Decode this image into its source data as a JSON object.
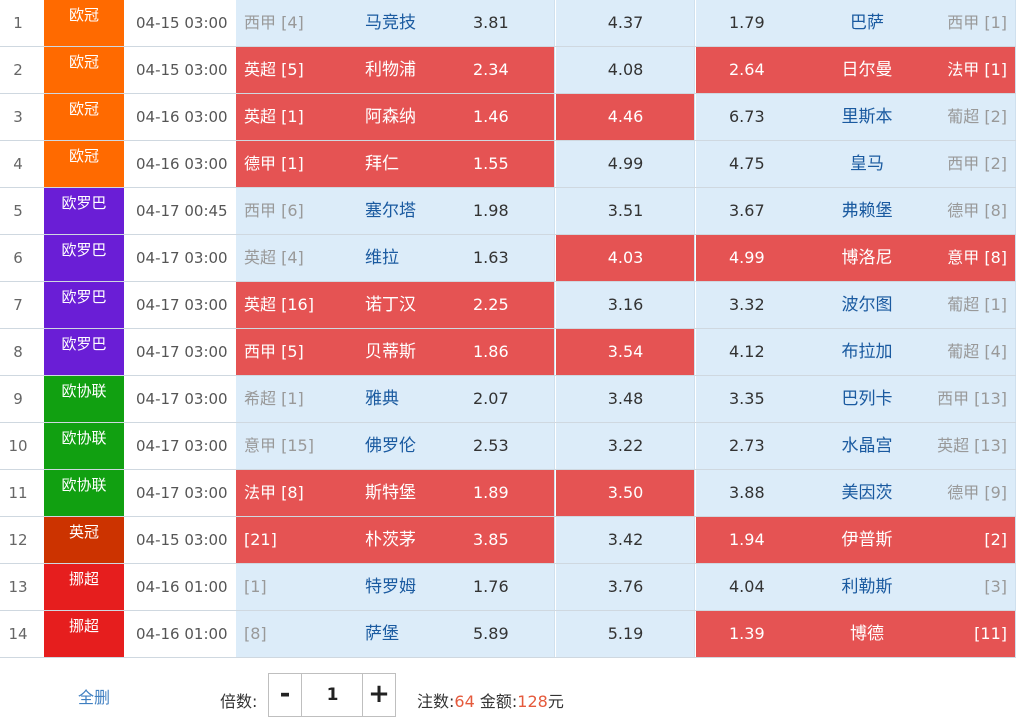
{
  "matches": [
    {
      "no": "1",
      "league": "欧冠",
      "league_color": "#ff6a00",
      "time": "04-15 03:00",
      "home_rank": "西甲 [4]",
      "home": "马竞技",
      "home_odds": "3.81",
      "draw_odds": "4.37",
      "away_odds": "1.79",
      "away": "巴萨",
      "away_rank": "西甲 [1]",
      "selected": []
    },
    {
      "no": "2",
      "league": "欧冠",
      "league_color": "#ff6a00",
      "time": "04-15 03:00",
      "home_rank": "英超 [5]",
      "home": "利物浦",
      "home_odds": "2.34",
      "draw_odds": "4.08",
      "away_odds": "2.64",
      "away": "日尔曼",
      "away_rank": "法甲 [1]",
      "selected": [
        "home",
        "away"
      ]
    },
    {
      "no": "3",
      "league": "欧冠",
      "league_color": "#ff6a00",
      "time": "04-16 03:00",
      "home_rank": "英超 [1]",
      "home": "阿森纳",
      "home_odds": "1.46",
      "draw_odds": "4.46",
      "away_odds": "6.73",
      "away": "里斯本",
      "away_rank": "葡超 [2]",
      "selected": [
        "home",
        "draw"
      ]
    },
    {
      "no": "4",
      "league": "欧冠",
      "league_color": "#ff6a00",
      "time": "04-16 03:00",
      "home_rank": "德甲 [1]",
      "home": "拜仁",
      "home_odds": "1.55",
      "draw_odds": "4.99",
      "away_odds": "4.75",
      "away": "皇马",
      "away_rank": "西甲 [2]",
      "selected": [
        "home"
      ]
    },
    {
      "no": "5",
      "league": "欧罗巴",
      "league_color": "#6a1ed6",
      "time": "04-17 00:45",
      "home_rank": "西甲 [6]",
      "home": "塞尔塔",
      "home_odds": "1.98",
      "draw_odds": "3.51",
      "away_odds": "3.67",
      "away": "弗赖堡",
      "away_rank": "德甲 [8]",
      "selected": []
    },
    {
      "no": "6",
      "league": "欧罗巴",
      "league_color": "#6a1ed6",
      "time": "04-17 03:00",
      "home_rank": "英超 [4]",
      "home": "维拉",
      "home_odds": "1.63",
      "draw_odds": "4.03",
      "away_odds": "4.99",
      "away": "博洛尼",
      "away_rank": "意甲 [8]",
      "selected": [
        "draw",
        "away"
      ]
    },
    {
      "no": "7",
      "league": "欧罗巴",
      "league_color": "#6a1ed6",
      "time": "04-17 03:00",
      "home_rank": "英超 [16]",
      "home": "诺丁汉",
      "home_odds": "2.25",
      "draw_odds": "3.16",
      "away_odds": "3.32",
      "away": "波尔图",
      "away_rank": "葡超 [1]",
      "selected": [
        "home"
      ]
    },
    {
      "no": "8",
      "league": "欧罗巴",
      "league_color": "#6a1ed6",
      "time": "04-17 03:00",
      "home_rank": "西甲 [5]",
      "home": "贝蒂斯",
      "home_odds": "1.86",
      "draw_odds": "3.54",
      "away_odds": "4.12",
      "away": "布拉加",
      "away_rank": "葡超 [4]",
      "selected": [
        "home",
        "draw"
      ]
    },
    {
      "no": "9",
      "league": "欧协联",
      "league_color": "#11a011",
      "time": "04-17 03:00",
      "home_rank": "希超 [1]",
      "home": "雅典",
      "home_odds": "2.07",
      "draw_odds": "3.48",
      "away_odds": "3.35",
      "away": "巴列卡",
      "away_rank": "西甲 [13]",
      "selected": []
    },
    {
      "no": "10",
      "league": "欧协联",
      "league_color": "#11a011",
      "time": "04-17 03:00",
      "home_rank": "意甲 [15]",
      "home": "佛罗伦",
      "home_odds": "2.53",
      "draw_odds": "3.22",
      "away_odds": "2.73",
      "away": "水晶宫",
      "away_rank": "英超 [13]",
      "selected": []
    },
    {
      "no": "11",
      "league": "欧协联",
      "league_color": "#11a011",
      "time": "04-17 03:00",
      "home_rank": "法甲 [8]",
      "home": "斯特堡",
      "home_odds": "1.89",
      "draw_odds": "3.50",
      "away_odds": "3.88",
      "away": "美因茨",
      "away_rank": "德甲 [9]",
      "selected": [
        "home",
        "draw"
      ]
    },
    {
      "no": "12",
      "league": "英冠",
      "league_color": "#cc3300",
      "time": "04-15 03:00",
      "home_rank": "[21]",
      "home": "朴茨茅",
      "home_odds": "3.85",
      "draw_odds": "3.42",
      "away_odds": "1.94",
      "away": "伊普斯",
      "away_rank": "[2]",
      "selected": [
        "home",
        "away"
      ]
    },
    {
      "no": "13",
      "league": "挪超",
      "league_color": "#e61e1e",
      "time": "04-16 01:00",
      "home_rank": "[1]",
      "home": "特罗姆",
      "home_odds": "1.76",
      "draw_odds": "3.76",
      "away_odds": "4.04",
      "away": "利勒斯",
      "away_rank": "[3]",
      "selected": []
    },
    {
      "no": "14",
      "league": "挪超",
      "league_color": "#e61e1e",
      "time": "04-16 01:00",
      "home_rank": "[8]",
      "home": "萨堡",
      "home_odds": "5.89",
      "draw_odds": "5.19",
      "away_odds": "1.39",
      "away": "博德",
      "away_rank": "[11]",
      "selected": [
        "away"
      ]
    }
  ],
  "footer": {
    "clear_all": "全删",
    "multiplier_label": "倍数:",
    "minus": "-",
    "multiplier_value": "1",
    "plus": "+",
    "bets_label": "注数:",
    "bets_count": "64",
    "amount_label": "金额:",
    "amount_value": "128",
    "currency": "元"
  },
  "colors": {
    "selected_bg": "#e55353",
    "cell_bg": "#dcecf9",
    "team_text": "#1a5aa0",
    "highlight_num": "#e55a3c"
  }
}
